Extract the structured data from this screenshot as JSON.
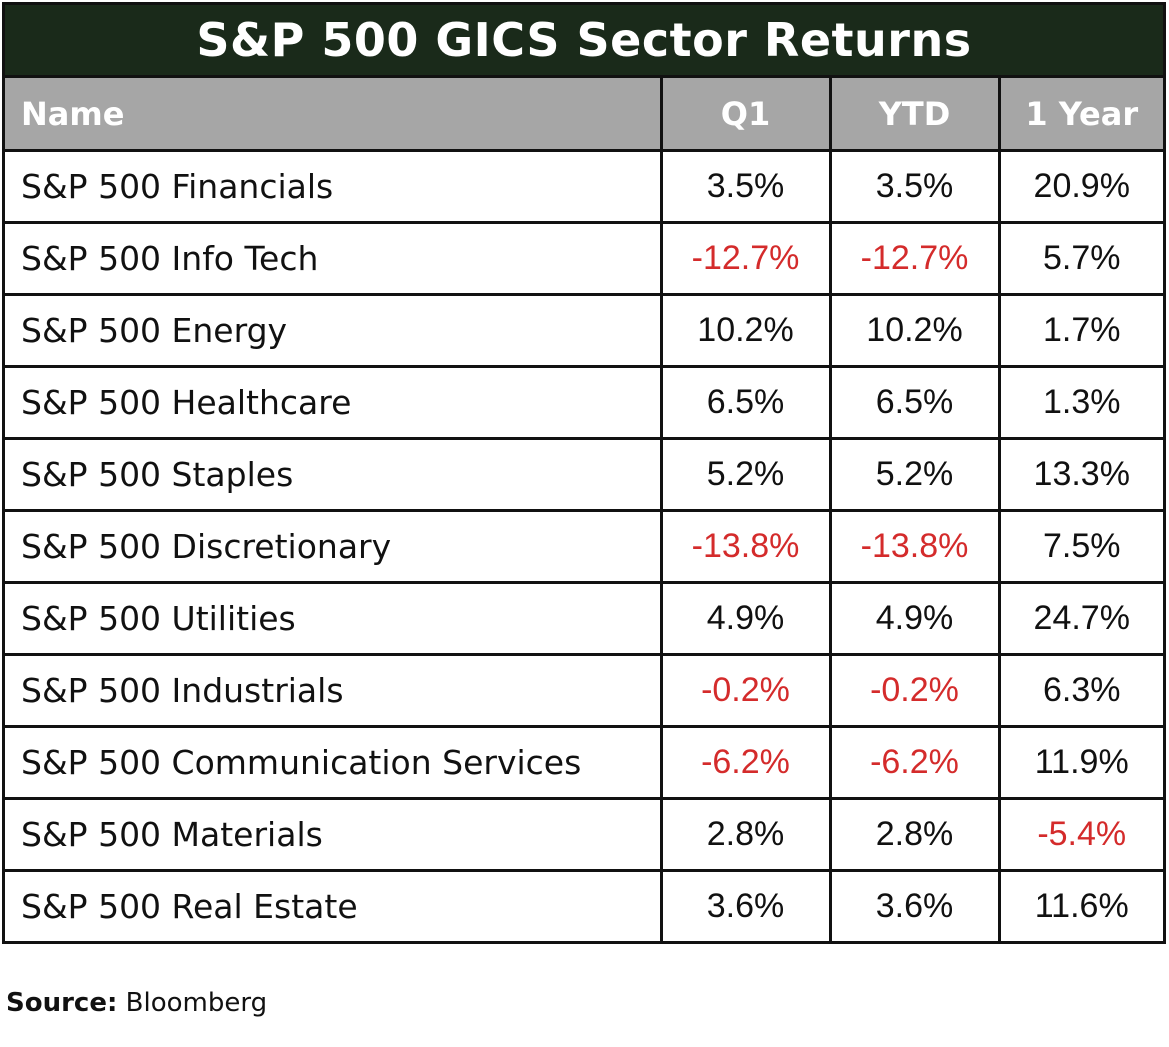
{
  "title": "S&P 500 GICS Sector Returns",
  "columns": {
    "name": "Name",
    "q1": "Q1",
    "ytd": "YTD",
    "one_year": "1 Year"
  },
  "rows": [
    {
      "name": "S&P 500 Financials",
      "q1": "3.5%",
      "ytd": "3.5%",
      "one_year": "20.9%"
    },
    {
      "name": "S&P 500 Info Tech",
      "q1": "-12.7%",
      "ytd": "-12.7%",
      "one_year": "5.7%"
    },
    {
      "name": "S&P 500 Energy",
      "q1": "10.2%",
      "ytd": "10.2%",
      "one_year": "1.7%"
    },
    {
      "name": "S&P 500 Healthcare",
      "q1": "6.5%",
      "ytd": "6.5%",
      "one_year": "1.3%"
    },
    {
      "name": "S&P 500 Staples",
      "q1": "5.2%",
      "ytd": "5.2%",
      "one_year": "13.3%"
    },
    {
      "name": "S&P 500 Discretionary",
      "q1": "-13.8%",
      "ytd": "-13.8%",
      "one_year": "7.5%"
    },
    {
      "name": "S&P 500 Utilities",
      "q1": "4.9%",
      "ytd": "4.9%",
      "one_year": "24.7%"
    },
    {
      "name": "S&P 500 Industrials",
      "q1": "-0.2%",
      "ytd": "-0.2%",
      "one_year": "6.3%"
    },
    {
      "name": "S&P 500 Communication Services",
      "q1": "-6.2%",
      "ytd": "-6.2%",
      "one_year": "11.9%"
    },
    {
      "name": "S&P 500 Materials",
      "q1": "2.8%",
      "ytd": "2.8%",
      "one_year": "-5.4%"
    },
    {
      "name": "S&P 500 Real Estate",
      "q1": "3.6%",
      "ytd": "3.6%",
      "one_year": "11.6%"
    }
  ],
  "source": {
    "label": "Source:",
    "value": "Bloomberg"
  },
  "colors": {
    "title_bg": "#1a2a1a",
    "header_bg": "#a6a6a6",
    "negative": "#d42b2b"
  }
}
